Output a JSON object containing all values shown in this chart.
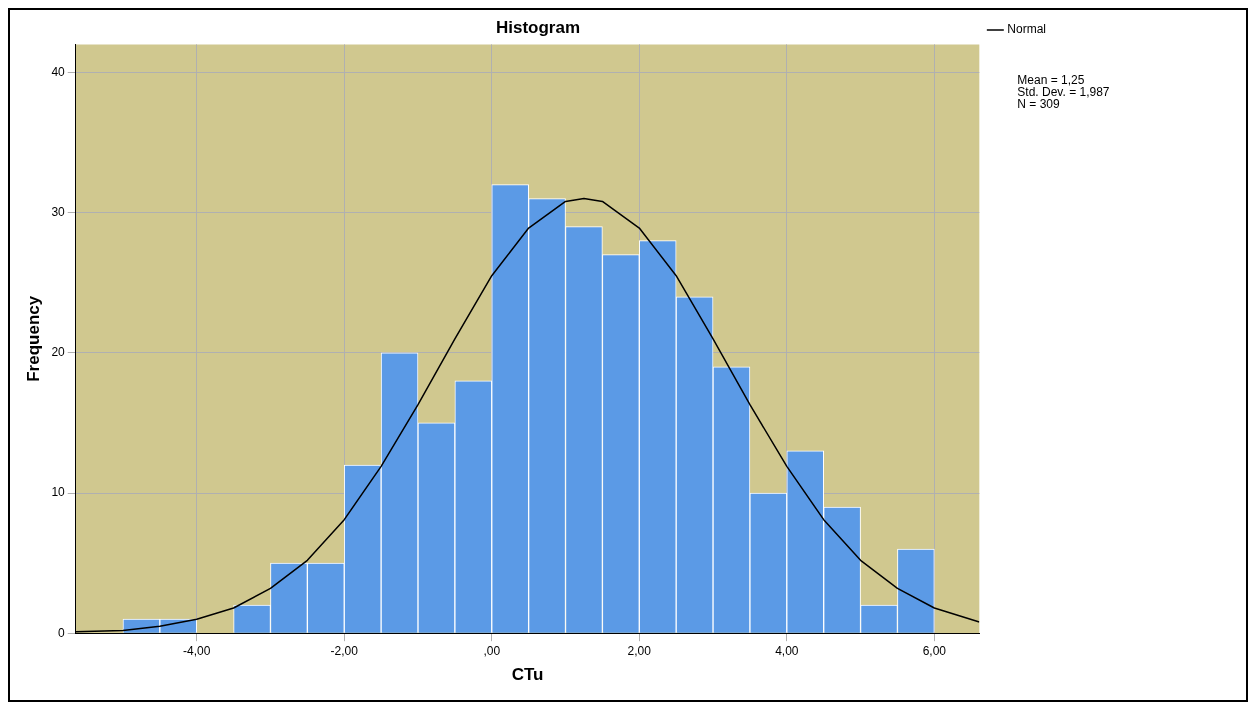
{
  "chart_data": {
    "type": "histogram",
    "title": "Histogram",
    "xlabel": "CTu",
    "ylabel": "Frequency",
    "series": [
      {
        "color": "#5b9ae6",
        "bins": [
          -5,
          -4.5,
          -4,
          -3.5,
          -3,
          -2.5,
          -2,
          -1.5,
          -1,
          -0.5,
          0,
          0.5,
          1,
          1.5,
          2,
          2.5,
          3,
          3.5,
          4,
          4.5,
          5,
          5.5,
          6
        ],
        "values": [
          1,
          1,
          0,
          2,
          5,
          5,
          12,
          20,
          15,
          18,
          32,
          31,
          29,
          27,
          28,
          24,
          19,
          10,
          13,
          9,
          2,
          6
        ]
      },
      {
        "type": "line",
        "name": "Normal",
        "color": "#000000",
        "x": [
          -5.64,
          -5,
          -4.5,
          -4,
          -3.5,
          -3,
          -2.5,
          -2,
          -1.5,
          -1,
          -0.5,
          0,
          0.5,
          1,
          1.25,
          1.5,
          2,
          2.5,
          3,
          3.5,
          4,
          4.5,
          5,
          5.5,
          6,
          6.61
        ],
        "values": [
          0.1,
          0.2,
          0.5,
          1.0,
          1.8,
          3.2,
          5.2,
          8.1,
          11.9,
          16.3,
          21.0,
          25.5,
          28.9,
          30.8,
          31.0,
          30.8,
          28.9,
          25.5,
          21.0,
          16.3,
          11.9,
          8.1,
          5.2,
          3.2,
          1.8,
          0.8
        ]
      }
    ],
    "xlim": [
      -5.64,
      6.61
    ],
    "xticks": [
      {
        "value": -4,
        "label": "-4,00"
      },
      {
        "value": -2,
        "label": "-2,00"
      },
      {
        "value": 0,
        "label": ",00"
      },
      {
        "value": 2,
        "label": "2,00"
      },
      {
        "value": 4,
        "label": "4,00"
      },
      {
        "value": 6,
        "label": "6,00"
      }
    ],
    "ylim": [
      0,
      42
    ],
    "yticks": [
      0,
      10,
      20,
      30,
      40
    ],
    "grid": true,
    "legend": "top right",
    "marker": "none",
    "line_style": "solid",
    "annotations": [
      "Mean = 1,25",
      "Std. Dev. = 1,987",
      "N = 309"
    ]
  }
}
